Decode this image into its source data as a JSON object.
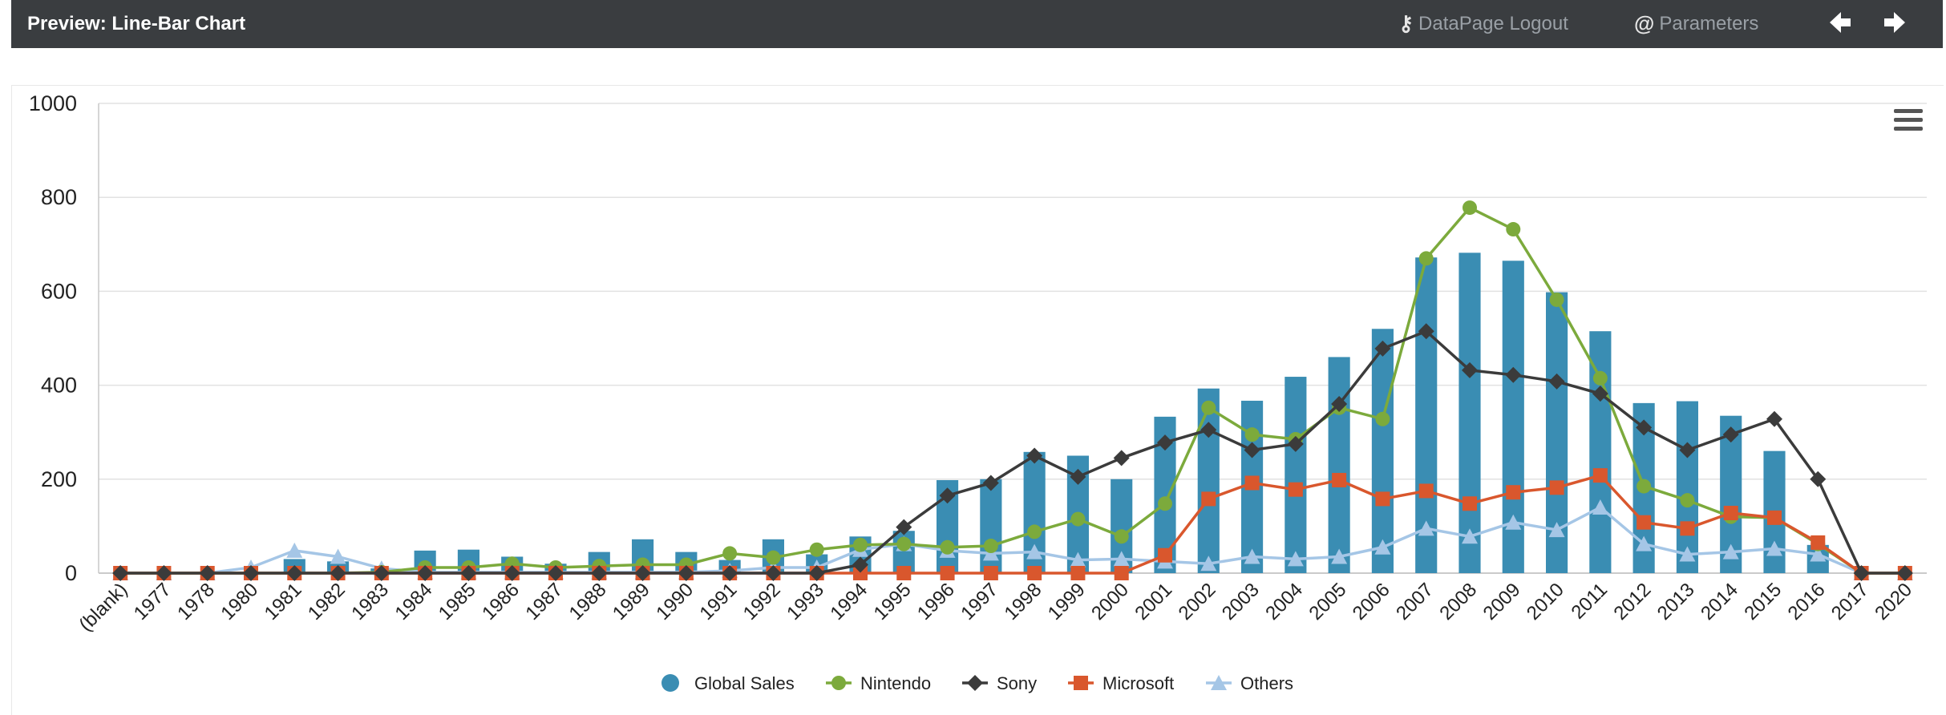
{
  "header": {
    "title": "Preview: Line-Bar Chart",
    "logout_label": "DataPage Logout",
    "logout_icon": "key-icon",
    "parameters_label": "Parameters",
    "parameters_icon": "at-icon",
    "back_icon": "arrow-left-icon",
    "forward_icon": "arrow-right-icon"
  },
  "chart_menu_icon": "hamburger-menu-icon",
  "chart_data": {
    "type": "bar",
    "categories": [
      "(blank)",
      "1977",
      "1978",
      "1980",
      "1981",
      "1982",
      "1983",
      "1984",
      "1985",
      "1986",
      "1987",
      "1988",
      "1989",
      "1990",
      "1991",
      "1992",
      "1993",
      "1994",
      "1995",
      "1996",
      "1997",
      "1998",
      "1999",
      "2000",
      "2001",
      "2002",
      "2003",
      "2004",
      "2005",
      "2006",
      "2007",
      "2008",
      "2009",
      "2010",
      "2011",
      "2012",
      "2013",
      "2014",
      "2015",
      "2016",
      "2017",
      "2020"
    ],
    "ylim": [
      0,
      1000
    ],
    "yticks": [
      0,
      200,
      400,
      600,
      800,
      1000
    ],
    "grid": true,
    "legend_position": "bottom-center",
    "series": [
      {
        "name": "Global Sales",
        "kind": "bar",
        "color": "#3a8db3",
        "marker": "circle",
        "values": [
          0,
          0,
          0,
          0,
          30,
          25,
          10,
          48,
          50,
          35,
          20,
          45,
          72,
          45,
          28,
          72,
          40,
          78,
          90,
          198,
          200,
          258,
          250,
          200,
          333,
          393,
          367,
          418,
          460,
          520,
          672,
          682,
          665,
          598,
          515,
          362,
          366,
          335,
          260,
          60,
          0,
          0
        ]
      },
      {
        "name": "Nintendo",
        "kind": "line",
        "color": "#7caa3c",
        "marker": "circle",
        "values": [
          0,
          0,
          0,
          0,
          0,
          0,
          2,
          12,
          12,
          20,
          12,
          15,
          18,
          18,
          42,
          33,
          50,
          60,
          62,
          55,
          58,
          88,
          115,
          78,
          148,
          352,
          295,
          285,
          352,
          328,
          670,
          778,
          732,
          582,
          415,
          185,
          155,
          120,
          118,
          62,
          0,
          0
        ]
      },
      {
        "name": "Sony",
        "kind": "line",
        "color": "#3b3b3b",
        "marker": "diamond",
        "values": [
          0,
          0,
          0,
          0,
          0,
          0,
          0,
          0,
          0,
          0,
          0,
          0,
          0,
          0,
          0,
          0,
          0,
          18,
          98,
          165,
          192,
          250,
          205,
          245,
          278,
          305,
          262,
          275,
          360,
          478,
          515,
          432,
          422,
          408,
          382,
          310,
          262,
          295,
          328,
          200,
          0,
          0
        ]
      },
      {
        "name": "Microsoft",
        "kind": "line",
        "color": "#d9572d",
        "marker": "square",
        "values": [
          0,
          0,
          0,
          0,
          0,
          0,
          0,
          0,
          0,
          0,
          0,
          0,
          0,
          0,
          0,
          0,
          0,
          0,
          0,
          0,
          0,
          0,
          0,
          0,
          38,
          158,
          192,
          178,
          198,
          158,
          175,
          148,
          172,
          182,
          208,
          108,
          95,
          128,
          118,
          65,
          0,
          0
        ]
      },
      {
        "name": "Others",
        "kind": "line",
        "color": "#a5c6e6",
        "marker": "triangle",
        "values": [
          0,
          0,
          0,
          12,
          48,
          35,
          10,
          2,
          2,
          2,
          2,
          2,
          2,
          2,
          5,
          12,
          12,
          50,
          62,
          48,
          42,
          45,
          28,
          30,
          25,
          20,
          35,
          30,
          35,
          55,
          95,
          78,
          108,
          92,
          140,
          62,
          40,
          45,
          52,
          40,
          0,
          0
        ]
      }
    ]
  }
}
